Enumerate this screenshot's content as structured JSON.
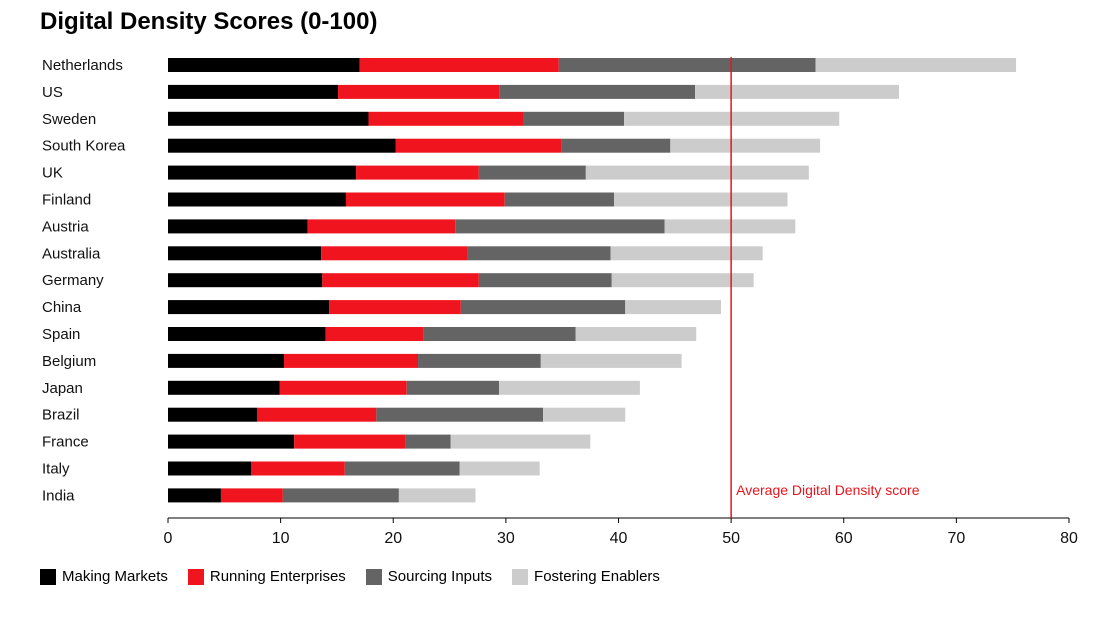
{
  "chart_data": {
    "type": "bar",
    "orientation": "horizontal",
    "stacked": true,
    "title": "Digital Density Scores (0-100)",
    "categories": [
      "Netherlands",
      "US",
      "Sweden",
      "South Korea",
      "UK",
      "Finland",
      "Austria",
      "Australia",
      "Germany",
      "China",
      "Spain",
      "Belgium",
      "Japan",
      "Brazil",
      "France",
      "Italy",
      "India"
    ],
    "series": [
      {
        "name": "Making Markets",
        "color": "#000000",
        "values": [
          17.0,
          15.1,
          17.8,
          20.2,
          16.7,
          15.8,
          12.4,
          13.6,
          13.7,
          14.3,
          14.0,
          10.3,
          9.9,
          7.9,
          11.2,
          7.4,
          4.7
        ]
      },
      {
        "name": "Running Enterprises",
        "color": "#f0141e",
        "values": [
          17.7,
          14.3,
          13.8,
          14.7,
          10.9,
          14.1,
          13.1,
          13.0,
          13.9,
          11.7,
          8.7,
          11.9,
          11.3,
          10.6,
          9.9,
          8.3,
          5.5
        ]
      },
      {
        "name": "Sourcing Inputs",
        "color": "#646464",
        "values": [
          22.8,
          17.4,
          8.9,
          9.7,
          9.5,
          9.7,
          18.6,
          12.7,
          11.8,
          14.6,
          13.5,
          10.9,
          8.2,
          14.8,
          4.0,
          10.2,
          10.3
        ]
      },
      {
        "name": "Fostering Enablers",
        "color": "#cccccc",
        "values": [
          17.8,
          18.1,
          19.1,
          13.3,
          19.8,
          15.4,
          11.6,
          13.5,
          12.6,
          8.5,
          10.7,
          12.5,
          12.5,
          7.3,
          12.4,
          7.1,
          6.8
        ]
      }
    ],
    "xlim": [
      0,
      80
    ],
    "xticks": [
      "0",
      "10",
      "20",
      "30",
      "40",
      "50",
      "60",
      "70",
      "80"
    ],
    "reference_line": {
      "value": 50,
      "label": "Average Digital Density score",
      "color": "#e8141e"
    },
    "grid": false,
    "legend_position": "bottom-left"
  }
}
